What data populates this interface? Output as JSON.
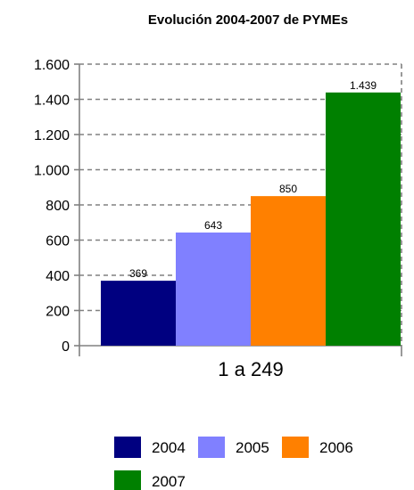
{
  "chart_data": {
    "type": "bar",
    "title": "Evolución 2004-2007 de PYMEs",
    "categories": [
      "1 a 249"
    ],
    "series": [
      {
        "name": "2004",
        "values": [
          369
        ],
        "label": "369",
        "color": "#000080"
      },
      {
        "name": "2005",
        "values": [
          643
        ],
        "label": "643",
        "color": "#8080FF"
      },
      {
        "name": "2006",
        "values": [
          850
        ],
        "label": "850",
        "color": "#FF8000"
      },
      {
        "name": "2007",
        "values": [
          1439
        ],
        "label": "1.439",
        "color": "#008000"
      }
    ],
    "yticks": [
      {
        "value": 0,
        "label": "0"
      },
      {
        "value": 200,
        "label": "200"
      },
      {
        "value": 400,
        "label": "400"
      },
      {
        "value": 600,
        "label": "600"
      },
      {
        "value": 800,
        "label": "800"
      },
      {
        "value": 1000,
        "label": "1.000"
      },
      {
        "value": 1200,
        "label": "1.200"
      },
      {
        "value": 1400,
        "label": "1.400"
      },
      {
        "value": 1600,
        "label": "1.600"
      }
    ],
    "ylim": [
      0,
      1600
    ],
    "xlabel": "",
    "ylabel": "",
    "grid": true,
    "legend_position": "bottom"
  }
}
